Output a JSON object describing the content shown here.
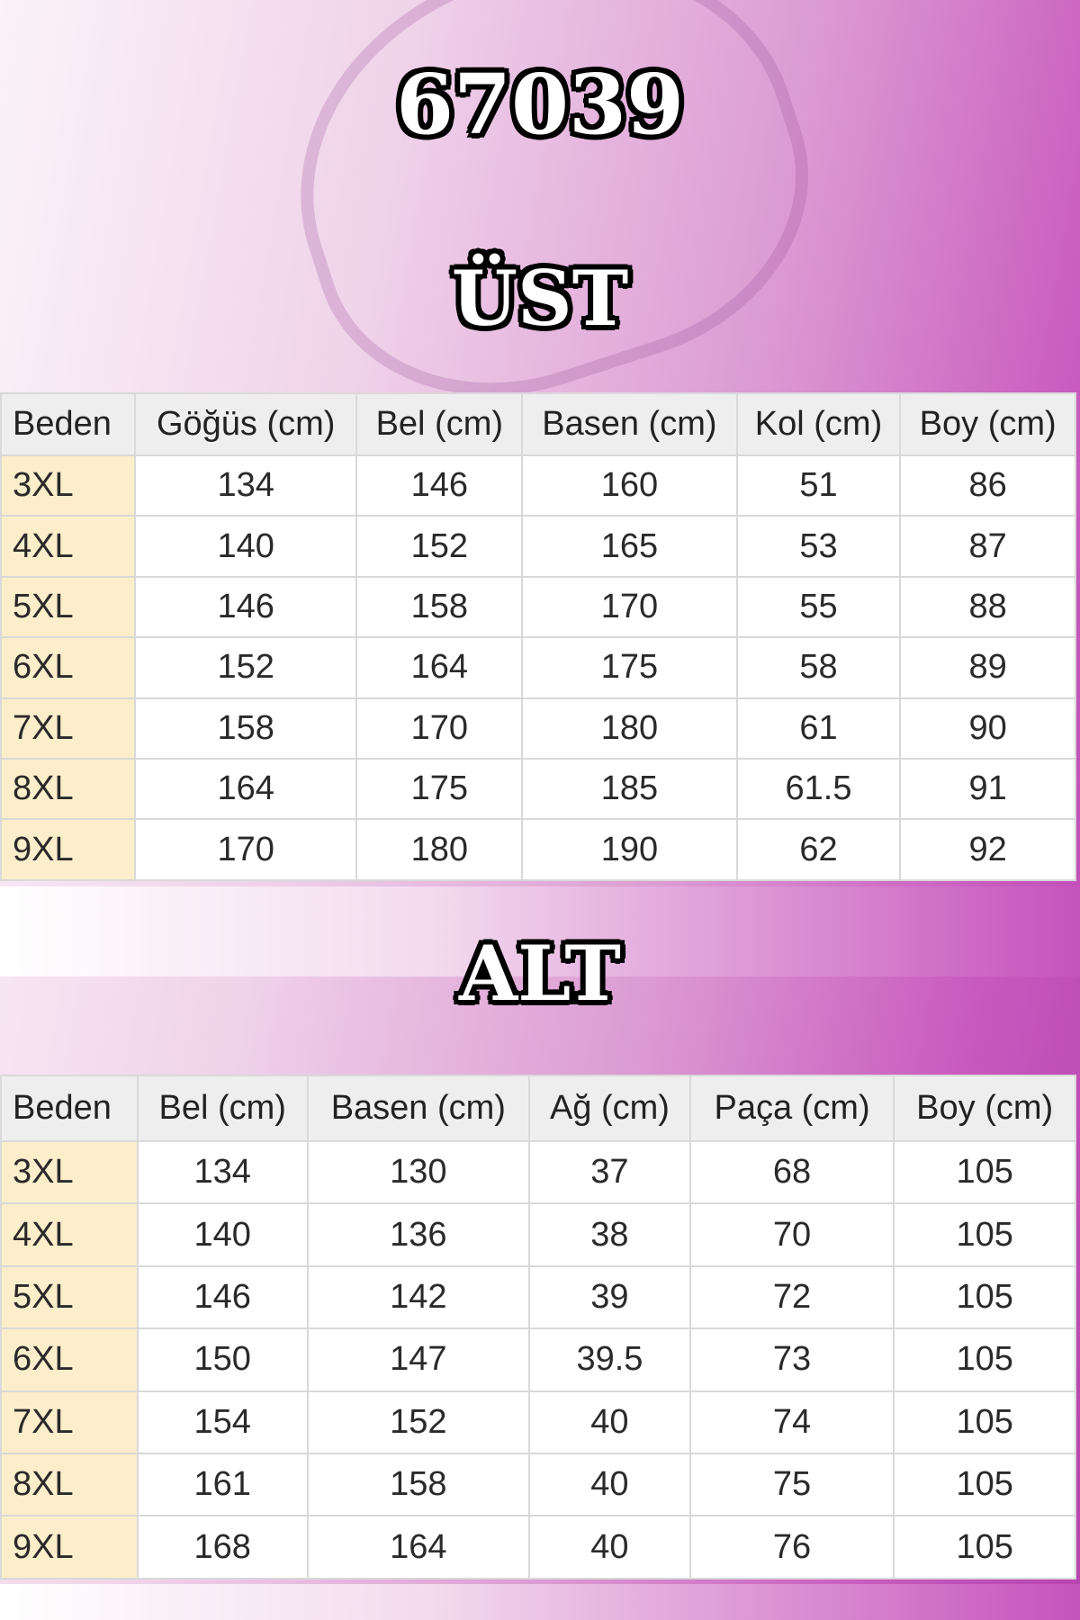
{
  "product_code": "67039",
  "top": {
    "title": "ÜST",
    "headers": [
      "Beden",
      "Göğüs (cm)",
      "Bel (cm)",
      "Basen (cm)",
      "Kol (cm)",
      "Boy (cm)"
    ],
    "rows": [
      [
        "3XL",
        "134",
        "146",
        "160",
        "51",
        "86"
      ],
      [
        "4XL",
        "140",
        "152",
        "165",
        "53",
        "87"
      ],
      [
        "5XL",
        "146",
        "158",
        "170",
        "55",
        "88"
      ],
      [
        "6XL",
        "152",
        "164",
        "175",
        "58",
        "89"
      ],
      [
        "7XL",
        "158",
        "170",
        "180",
        "61",
        "90"
      ],
      [
        "8XL",
        "164",
        "175",
        "185",
        "61.5",
        "91"
      ],
      [
        "9XL",
        "170",
        "180",
        "190",
        "62",
        "92"
      ]
    ]
  },
  "bottom": {
    "title": "ALT",
    "headers": [
      "Beden",
      "Bel (cm)",
      "Basen (cm)",
      "Ağ (cm)",
      "Paça (cm)",
      "Boy (cm)"
    ],
    "rows": [
      [
        "3XL",
        "134",
        "130",
        "37",
        "68",
        "105"
      ],
      [
        "4XL",
        "140",
        "136",
        "38",
        "70",
        "105"
      ],
      [
        "5XL",
        "146",
        "142",
        "39",
        "72",
        "105"
      ],
      [
        "6XL",
        "150",
        "147",
        "39.5",
        "73",
        "105"
      ],
      [
        "7XL",
        "154",
        "152",
        "40",
        "74",
        "105"
      ],
      [
        "8XL",
        "161",
        "158",
        "40",
        "75",
        "105"
      ],
      [
        "9XL",
        "168",
        "164",
        "40",
        "76",
        "105"
      ]
    ]
  },
  "colors": {
    "accent": "#c050b8",
    "size_cell": "#fdeecb",
    "header_cell": "#eeeeee"
  }
}
